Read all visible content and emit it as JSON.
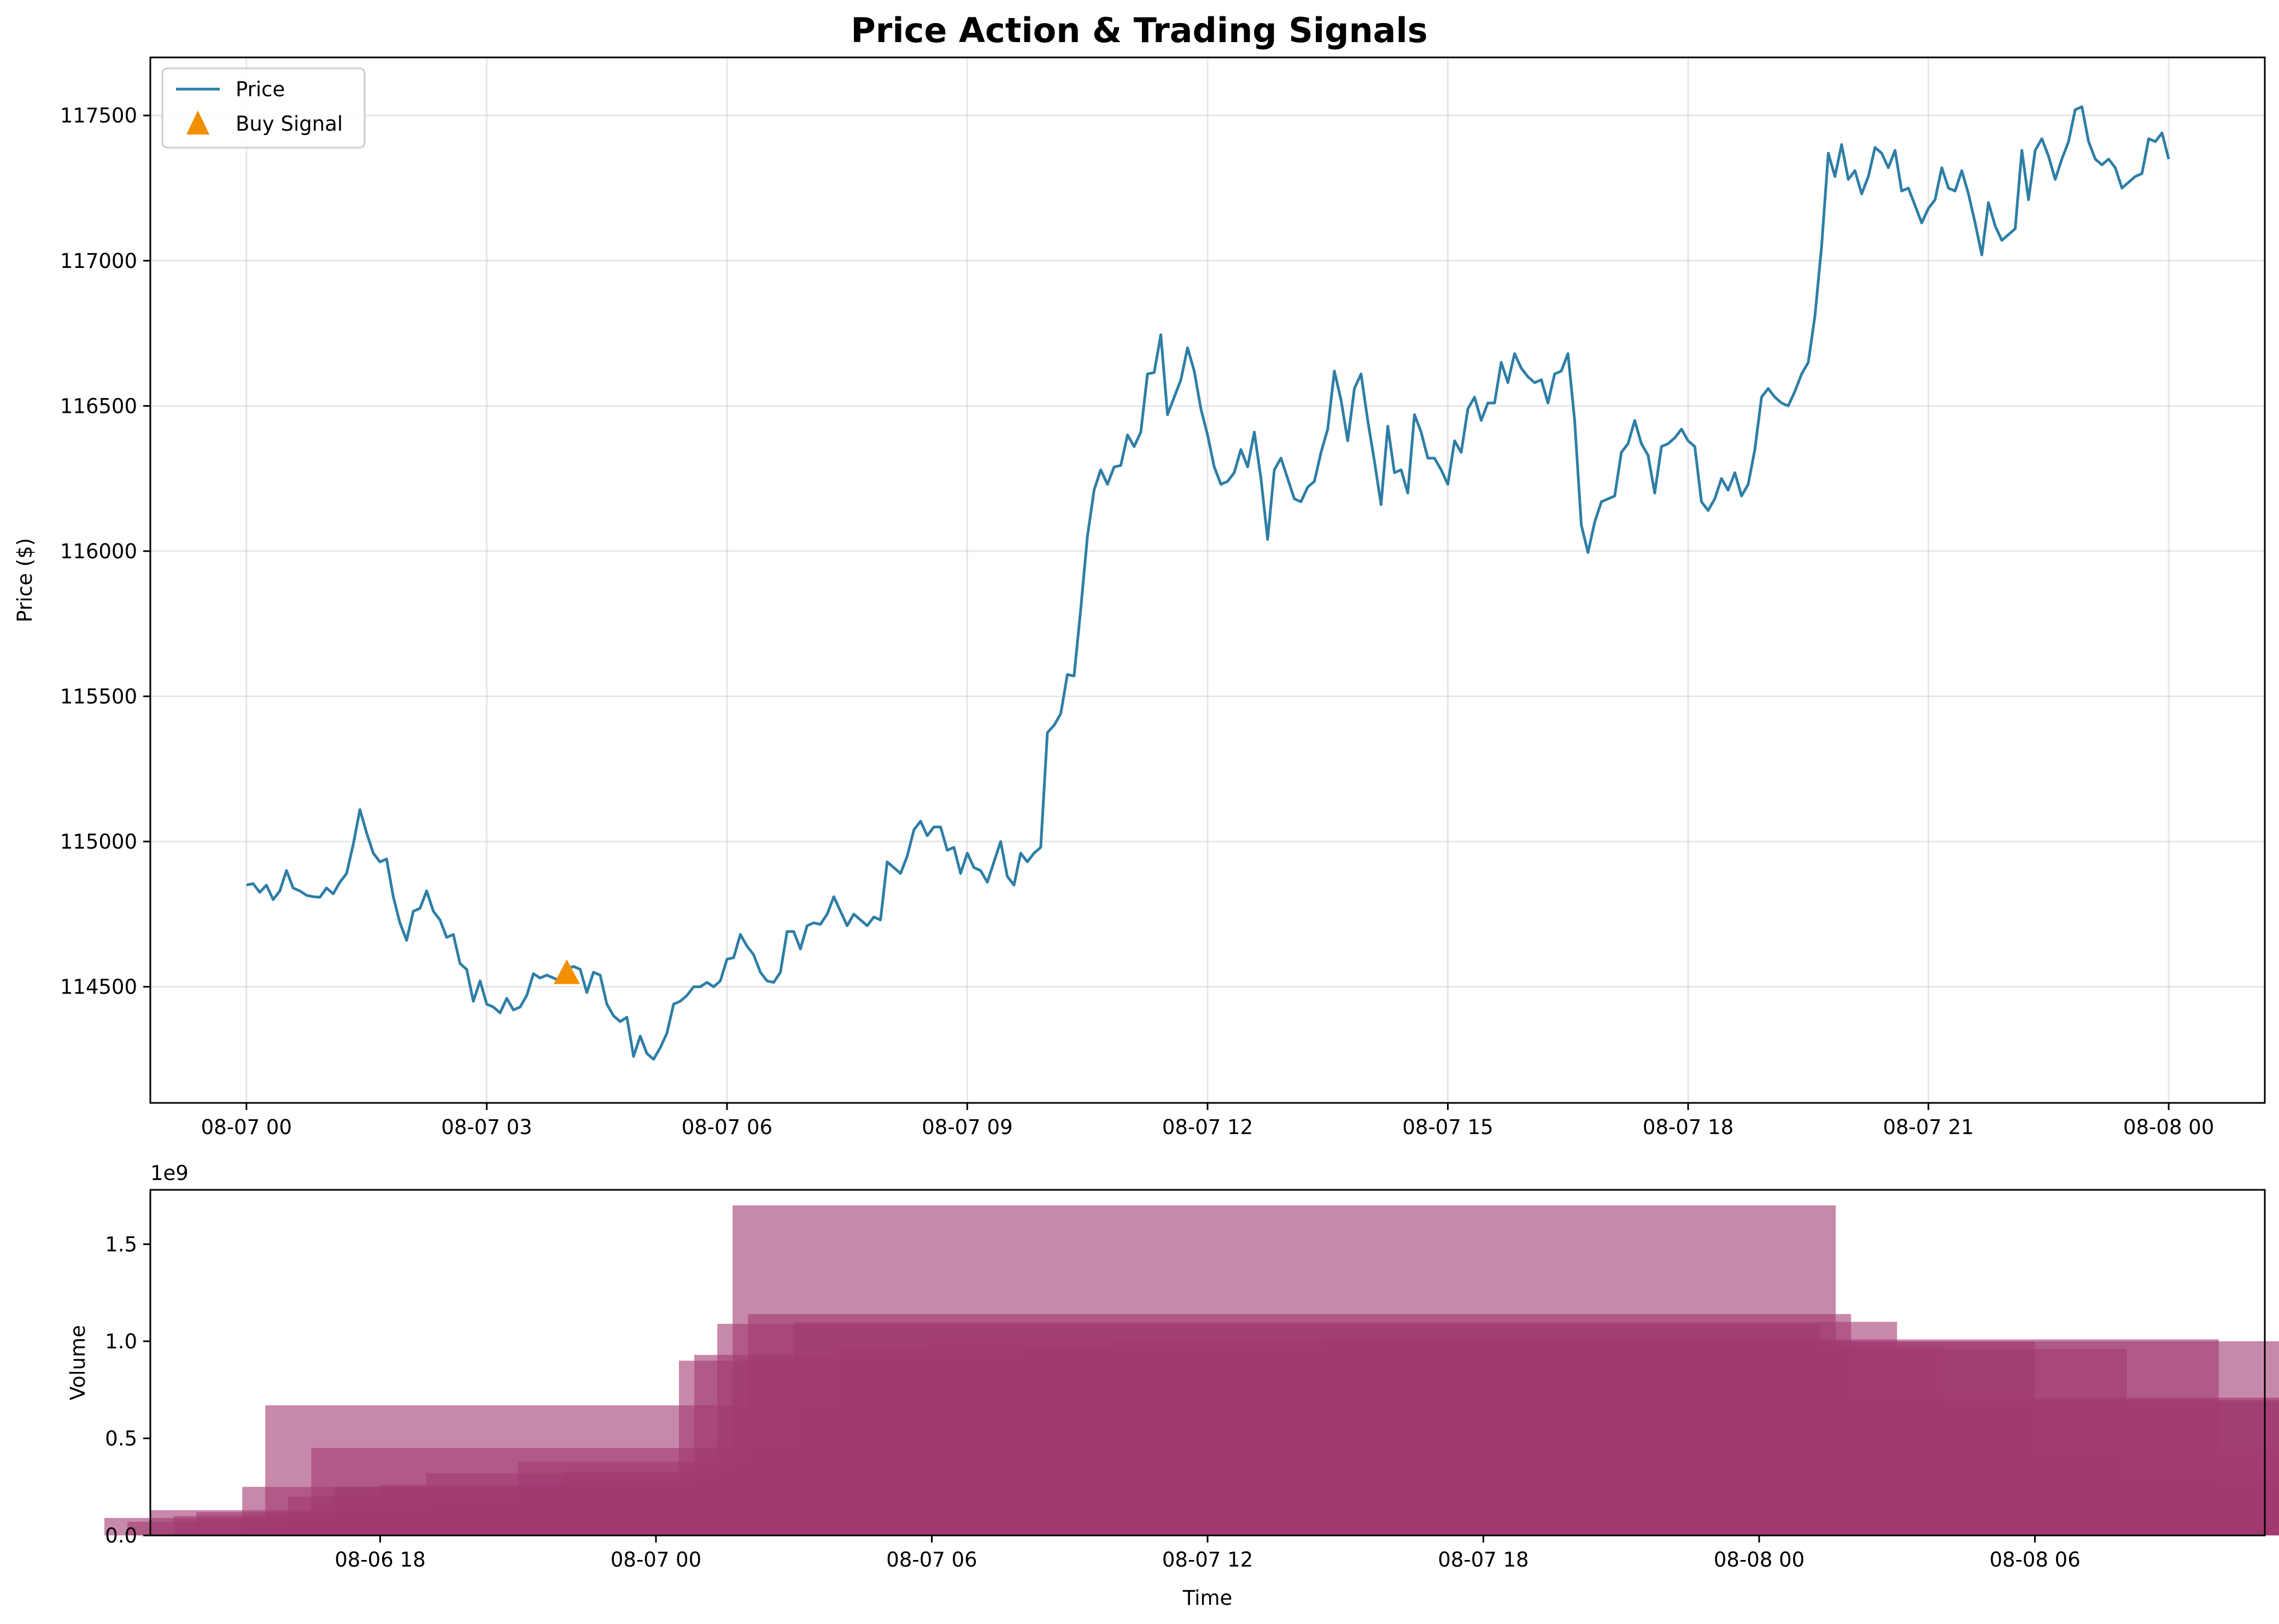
{
  "chart_data": [
    {
      "type": "line",
      "title": "Price Action & Trading Signals",
      "xlabel": "",
      "ylabel": "Price ($)",
      "xlim": [
        "2025-08-06T22:48",
        "2025-08-08T01:12"
      ],
      "ylim": [
        114100,
        117700
      ],
      "x_ticks": [
        "08-07 00",
        "08-07 03",
        "08-07 06",
        "08-07 09",
        "08-07 12",
        "08-07 15",
        "08-07 18",
        "08-07 21",
        "08-08 00"
      ],
      "y_ticks": [
        114500,
        115000,
        115500,
        116000,
        116500,
        117000,
        117500
      ],
      "grid": true,
      "legend": {
        "placement": "top-left",
        "entries": [
          "Price",
          "Buy Signal"
        ]
      },
      "colors": {
        "price": "#2e7ea6",
        "buy": "#f18f01"
      },
      "series": [
        {
          "name": "Price",
          "x": [
            "08-07 00:00",
            "08-07 00:05",
            "08-07 00:10",
            "08-07 00:15",
            "08-07 00:20",
            "08-07 00:25",
            "08-07 00:30",
            "08-07 00:35",
            "08-07 00:40",
            "08-07 00:45",
            "08-07 00:50",
            "08-07 00:55",
            "08-07 01:00",
            "08-07 01:05",
            "08-07 01:10",
            "08-07 01:15",
            "08-07 01:20",
            "08-07 01:25",
            "08-07 01:30",
            "08-07 01:35",
            "08-07 01:40",
            "08-07 01:45",
            "08-07 01:50",
            "08-07 01:55",
            "08-07 02:00",
            "08-07 02:05",
            "08-07 02:10",
            "08-07 02:15",
            "08-07 02:20",
            "08-07 02:25",
            "08-07 02:30",
            "08-07 02:35",
            "08-07 02:40",
            "08-07 02:45",
            "08-07 02:50",
            "08-07 02:55",
            "08-07 03:00",
            "08-07 03:05",
            "08-07 03:10",
            "08-07 03:15",
            "08-07 03:20",
            "08-07 03:25",
            "08-07 03:30",
            "08-07 03:35",
            "08-07 03:40",
            "08-07 03:45",
            "08-07 03:50",
            "08-07 03:55",
            "08-07 04:00",
            "08-07 04:05",
            "08-07 04:10",
            "08-07 04:15",
            "08-07 04:20",
            "08-07 04:25",
            "08-07 04:30",
            "08-07 04:35",
            "08-07 04:40",
            "08-07 04:45",
            "08-07 04:50",
            "08-07 04:55",
            "08-07 05:00",
            "08-07 05:05",
            "08-07 05:10",
            "08-07 05:15",
            "08-07 05:20",
            "08-07 05:25",
            "08-07 05:30",
            "08-07 05:35",
            "08-07 05:40",
            "08-07 05:45",
            "08-07 05:50",
            "08-07 05:55",
            "08-07 06:00",
            "08-07 06:05",
            "08-07 06:10",
            "08-07 06:15",
            "08-07 06:20",
            "08-07 06:25",
            "08-07 06:30",
            "08-07 06:35",
            "08-07 06:40",
            "08-07 06:45",
            "08-07 06:50",
            "08-07 06:55",
            "08-07 07:00",
            "08-07 07:05",
            "08-07 07:10",
            "08-07 07:15",
            "08-07 07:20",
            "08-07 07:25",
            "08-07 07:30",
            "08-07 07:35",
            "08-07 07:40",
            "08-07 07:45",
            "08-07 07:50",
            "08-07 07:55",
            "08-07 08:00",
            "08-07 08:05",
            "08-07 08:10",
            "08-07 08:15",
            "08-07 08:20",
            "08-07 08:25",
            "08-07 08:30",
            "08-07 08:35",
            "08-07 08:40",
            "08-07 08:45",
            "08-07 08:50",
            "08-07 08:55",
            "08-07 09:00",
            "08-07 09:05",
            "08-07 09:10",
            "08-07 09:15",
            "08-07 09:20",
            "08-07 09:25",
            "08-07 09:30",
            "08-07 09:35",
            "08-07 09:40",
            "08-07 09:45",
            "08-07 09:50",
            "08-07 09:55",
            "08-07 10:00",
            "08-07 10:05",
            "08-07 10:10",
            "08-07 10:15",
            "08-07 10:20",
            "08-07 10:25",
            "08-07 10:30",
            "08-07 10:35",
            "08-07 10:40",
            "08-07 10:45",
            "08-07 10:50",
            "08-07 10:55",
            "08-07 11:00",
            "08-07 11:05",
            "08-07 11:10",
            "08-07 11:15",
            "08-07 11:20",
            "08-07 11:25",
            "08-07 11:30",
            "08-07 11:35",
            "08-07 11:40",
            "08-07 11:45",
            "08-07 11:50",
            "08-07 11:55",
            "08-07 12:00",
            "08-07 12:05",
            "08-07 12:10",
            "08-07 12:15",
            "08-07 12:20",
            "08-07 12:25",
            "08-07 12:30",
            "08-07 12:35",
            "08-07 12:40",
            "08-07 12:45",
            "08-07 12:50",
            "08-07 12:55",
            "08-07 13:00",
            "08-07 13:05",
            "08-07 13:10",
            "08-07 13:15",
            "08-07 13:20",
            "08-07 13:25",
            "08-07 13:30",
            "08-07 13:35",
            "08-07 13:40",
            "08-07 13:45",
            "08-07 13:50",
            "08-07 13:55",
            "08-07 14:00",
            "08-07 14:05",
            "08-07 14:10",
            "08-07 14:15",
            "08-07 14:20",
            "08-07 14:25",
            "08-07 14:30",
            "08-07 14:35",
            "08-07 14:40",
            "08-07 14:45",
            "08-07 14:50",
            "08-07 14:55",
            "08-07 15:00",
            "08-07 15:05",
            "08-07 15:10",
            "08-07 15:15",
            "08-07 15:20",
            "08-07 15:25",
            "08-07 15:30",
            "08-07 15:35",
            "08-07 15:40",
            "08-07 15:45",
            "08-07 15:50",
            "08-07 15:55",
            "08-07 16:00",
            "08-07 16:05",
            "08-07 16:10",
            "08-07 16:15",
            "08-07 16:20",
            "08-07 16:25",
            "08-07 16:30",
            "08-07 16:35",
            "08-07 16:40",
            "08-07 16:45",
            "08-07 16:50",
            "08-07 16:55",
            "08-07 17:00",
            "08-07 17:05",
            "08-07 17:10",
            "08-07 17:15",
            "08-07 17:20",
            "08-07 17:25",
            "08-07 17:30",
            "08-07 17:35",
            "08-07 17:40",
            "08-07 17:45",
            "08-07 17:50",
            "08-07 17:55",
            "08-07 18:00",
            "08-07 18:05",
            "08-07 18:10",
            "08-07 18:15",
            "08-07 18:20",
            "08-07 18:25",
            "08-07 18:30",
            "08-07 18:35",
            "08-07 18:40",
            "08-07 18:45",
            "08-07 18:50",
            "08-07 18:55",
            "08-07 19:00",
            "08-07 19:05",
            "08-07 19:10",
            "08-07 19:15",
            "08-07 19:20",
            "08-07 19:25",
            "08-07 19:30",
            "08-07 19:35",
            "08-07 19:40",
            "08-07 19:45",
            "08-07 19:50",
            "08-07 19:55",
            "08-07 20:00",
            "08-07 20:05",
            "08-07 20:10",
            "08-07 20:15",
            "08-07 20:20",
            "08-07 20:25",
            "08-07 20:30",
            "08-07 20:35",
            "08-07 20:40",
            "08-07 20:45",
            "08-07 20:50",
            "08-07 20:55",
            "08-07 21:00",
            "08-07 21:05",
            "08-07 21:10",
            "08-07 21:15",
            "08-07 21:20",
            "08-07 21:25",
            "08-07 21:30",
            "08-07 21:35",
            "08-07 21:40",
            "08-07 21:45",
            "08-07 21:50",
            "08-07 21:55",
            "08-07 22:00",
            "08-07 22:05",
            "08-07 22:10",
            "08-07 22:15",
            "08-07 22:20",
            "08-07 22:25",
            "08-07 22:30",
            "08-07 22:35",
            "08-07 22:40",
            "08-07 22:45",
            "08-07 22:50",
            "08-07 22:55",
            "08-07 23:00",
            "08-07 23:05",
            "08-07 23:10",
            "08-07 23:15",
            "08-07 23:20",
            "08-07 23:25",
            "08-07 23:30",
            "08-07 23:35",
            "08-07 23:40",
            "08-07 23:45",
            "08-07 23:50",
            "08-07 23:55",
            "08-08 00:00"
          ],
          "values": [
            114850,
            114855,
            114825,
            114850,
            114800,
            114830,
            114900,
            114840,
            114830,
            114815,
            114810,
            114808,
            114840,
            114820,
            114860,
            114890,
            114990,
            115110,
            115030,
            114960,
            114930,
            114940,
            114810,
            114720,
            114660,
            114760,
            114770,
            114830,
            114760,
            114730,
            114670,
            114680,
            114580,
            114560,
            114450,
            114520,
            114440,
            114430,
            114410,
            114460,
            114420,
            114430,
            114470,
            114545,
            114530,
            114540,
            114530,
            114520,
            114560,
            114570,
            114560,
            114480,
            114550,
            114540,
            114440,
            114400,
            114380,
            114395,
            114260,
            114330,
            114270,
            114250,
            114290,
            114340,
            114440,
            114450,
            114470,
            114500,
            114500,
            114515,
            114500,
            114520,
            114595,
            114600,
            114680,
            114640,
            114610,
            114550,
            114520,
            114515,
            114550,
            114690,
            114690,
            114630,
            114710,
            114720,
            114715,
            114750,
            114810,
            114760,
            114710,
            114750,
            114730,
            114710,
            114740,
            114730,
            114930,
            114910,
            114890,
            114950,
            115040,
            115070,
            115020,
            115050,
            115050,
            114970,
            114980,
            114890,
            114960,
            114910,
            114900,
            114860,
            114930,
            115000,
            114880,
            114850,
            114960,
            114930,
            114960,
            114980,
            115375,
            115400,
            115440,
            115575,
            115570,
            115800,
            116050,
            116210,
            116280,
            116230,
            116290,
            116295,
            116400,
            116360,
            116410,
            116610,
            116615,
            116745,
            116470,
            116530,
            116590,
            116700,
            116620,
            116490,
            116400,
            116290,
            116230,
            116240,
            116270,
            116350,
            116290,
            116410,
            116250,
            116040,
            116280,
            116320,
            116250,
            116180,
            116170,
            116220,
            116240,
            116340,
            116420,
            116620,
            116520,
            116380,
            116560,
            116610,
            116450,
            116310,
            116160,
            116430,
            116270,
            116280,
            116200,
            116470,
            116410,
            116320,
            116320,
            116280,
            116230,
            116380,
            116340,
            116490,
            116530,
            116450,
            116510,
            116510,
            116650,
            116580,
            116680,
            116630,
            116600,
            116580,
            116590,
            116510,
            116610,
            116620,
            116680,
            116450,
            116090,
            115995,
            116100,
            116170,
            116180,
            116190,
            116340,
            116370,
            116450,
            116370,
            116330,
            116200,
            116360,
            116370,
            116390,
            116420,
            116380,
            116360,
            116170,
            116140,
            116180,
            116250,
            116210,
            116270,
            116190,
            116230,
            116350,
            116530,
            116560,
            116530,
            116510,
            116500,
            116550,
            116610,
            116650,
            116810,
            117050,
            117370,
            117290,
            117400,
            117280,
            117310,
            117230,
            117290,
            117390,
            117370,
            117320,
            117380,
            117240,
            117250,
            117190,
            117130,
            117180,
            117210,
            117320,
            117250,
            117240,
            117310,
            117230,
            117130,
            117020,
            117200,
            117120,
            117070,
            117090,
            117110,
            117380,
            117210,
            117380,
            117420,
            117360,
            117280,
            117350,
            117410,
            117520,
            117530,
            117410,
            117350,
            117330,
            117350,
            117320,
            117250,
            117270,
            117290,
            117300,
            117420,
            117410,
            117440,
            117350
          ]
        },
        {
          "name": "Buy Signal",
          "x": [
            "08-07 04:00"
          ],
          "values": [
            114545
          ]
        }
      ]
    },
    {
      "type": "bar",
      "title": "",
      "xlabel": "Time",
      "ylabel": "Volume",
      "y_scale_label": "1e9",
      "xlim": [
        "2025-08-06T13:00",
        "2025-08-08T11:00"
      ],
      "ylim": [
        0,
        1.78
      ],
      "x_ticks": [
        "08-06 18",
        "08-07 00",
        "08-07 06",
        "08-07 12",
        "08-07 18",
        "08-08 00",
        "08-08 06"
      ],
      "y_ticks": [
        "0.0",
        "0.5",
        "1.0",
        "1.5"
      ],
      "grid": false,
      "colors": {
        "bar": "#a23b72"
      },
      "note_bars": "each bar centred on a price sample, width 1 day (1e9 units)",
      "bars": [
        {
          "center": "08-07 00:00",
          "value": 0.09
        },
        {
          "center": "08-07 00:30",
          "value": 0.07
        },
        {
          "center": "08-07 01:00",
          "value": 0.13
        },
        {
          "center": "08-07 01:30",
          "value": 0.1
        },
        {
          "center": "08-07 02:00",
          "value": 0.12
        },
        {
          "center": "08-07 03:00",
          "value": 0.25
        },
        {
          "center": "08-07 03:30",
          "value": 0.67
        },
        {
          "center": "08-07 04:00",
          "value": 0.2
        },
        {
          "center": "08-07 04:30",
          "value": 0.45
        },
        {
          "center": "08-07 05:00",
          "value": 0.25
        },
        {
          "center": "08-07 06:00",
          "value": 0.26
        },
        {
          "center": "08-07 07:00",
          "value": 0.32
        },
        {
          "center": "08-07 09:00",
          "value": 0.38
        },
        {
          "center": "08-07 10:00",
          "value": 0.33
        },
        {
          "center": "08-07 12:30",
          "value": 0.9
        },
        {
          "center": "08-07 12:50",
          "value": 0.93
        },
        {
          "center": "08-07 13:20",
          "value": 1.09
        },
        {
          "center": "08-07 13:40",
          "value": 1.7
        },
        {
          "center": "08-07 14:00",
          "value": 1.14
        },
        {
          "center": "08-07 15:00",
          "value": 1.1
        },
        {
          "center": "08-07 16:00",
          "value": 0.97
        },
        {
          "center": "08-07 18:00",
          "value": 1.0
        },
        {
          "center": "08-07 20:00",
          "value": 0.96
        },
        {
          "center": "08-07 22:00",
          "value": 1.01
        },
        {
          "center": "08-08 00:00",
          "value": 0.71
        },
        {
          "center": "08-08 02:30",
          "value": 1.0
        },
        {
          "center": "08-08 03:00",
          "value": 0.69
        },
        {
          "center": "08-08 03:30",
          "value": 0.7
        },
        {
          "center": "08-08 04:00",
          "value": 0.42
        },
        {
          "center": "08-08 05:00",
          "value": 0.3
        },
        {
          "center": "08-08 06:00",
          "value": 0.26
        },
        {
          "center": "08-08 06:30",
          "value": 0.27
        },
        {
          "center": "08-08 07:00",
          "value": 0.28
        },
        {
          "center": "08-08 08:00",
          "value": 0.23
        },
        {
          "center": "08-08 08:30",
          "value": 0.16
        },
        {
          "center": "08-08 09:00",
          "value": 0.1
        },
        {
          "center": "08-08 09:30",
          "value": 0.09
        }
      ]
    }
  ]
}
